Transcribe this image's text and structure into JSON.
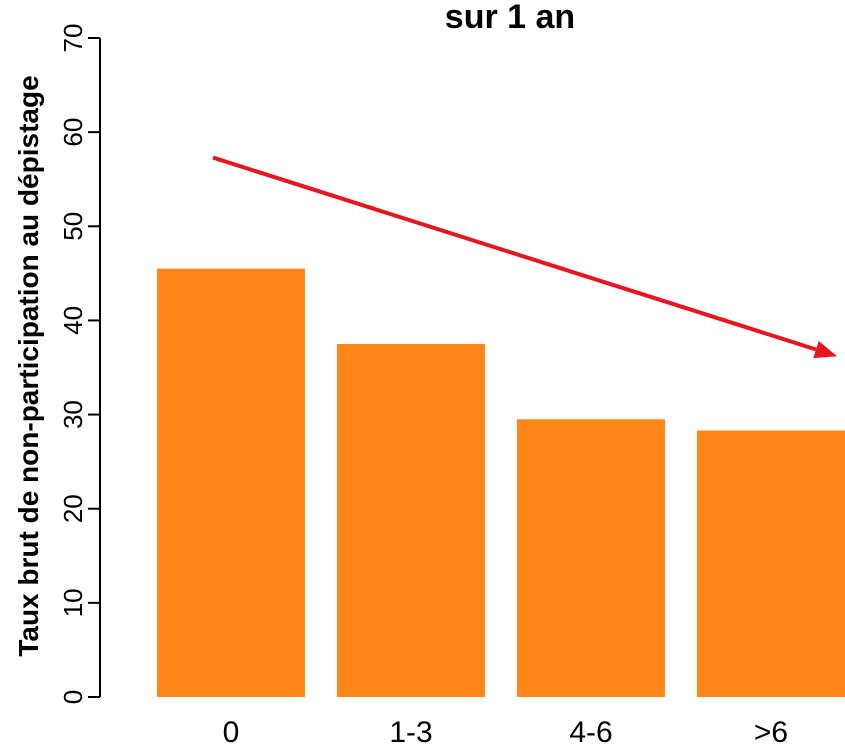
{
  "chart_data": {
    "type": "bar",
    "title": "sur 1 an",
    "ylabel": "Taux brut de non-participation au dépistage",
    "xlabel": "",
    "categories": [
      "0",
      "1-3",
      "4-6",
      ">6"
    ],
    "values": [
      45.5,
      37.5,
      29.5,
      28.3
    ],
    "ylim": [
      0,
      70
    ],
    "yticks": [
      0,
      10,
      20,
      30,
      40,
      50,
      60,
      70
    ],
    "grid": false,
    "bar_color": "#ff8519",
    "trend_arrow": {
      "color": "#e8141e",
      "from": {
        "x": 0,
        "y": 57.3
      },
      "to": {
        "x": 3,
        "y": 36.2
      }
    }
  }
}
